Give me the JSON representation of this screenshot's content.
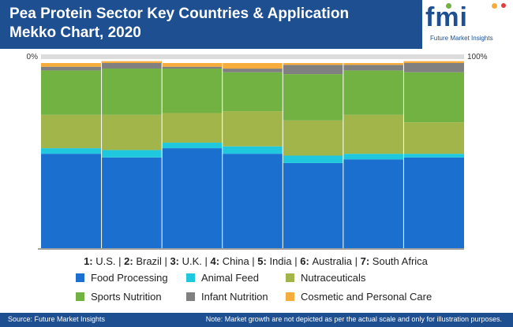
{
  "header": {
    "title_line1": "Pea Protein Sector Key Countries & Application",
    "title_line2": "Mekko Chart, 2020",
    "logo_text": "fmi",
    "logo_subtitle": "Future Market Insights"
  },
  "footer": {
    "source": "Source: Future Market Insights",
    "note": "Note: Market growth are not depicted as per the actual scale and only for illustration purposes."
  },
  "chart_data": {
    "type": "bar",
    "subtype": "mekko-stacked-100",
    "axis_labels": {
      "start": "0%",
      "end": "100%"
    },
    "categories": [
      "1: U.S.",
      "2: Brazil",
      "3: U.K.",
      "4: China",
      "5: India",
      "6: Australia",
      "7: South Africa"
    ],
    "category_numbers": [
      "1:",
      "2:",
      "3:",
      "4:",
      "5:",
      "6:",
      "7:"
    ],
    "category_names": [
      "U.S.",
      "Brazil",
      "U.K.",
      "China",
      "India",
      "Australia",
      "South Africa"
    ],
    "series": [
      {
        "name": "Food Processing",
        "color": "#1a6fcf",
        "values": [
          51,
          49,
          54,
          51,
          46,
          48,
          49
        ]
      },
      {
        "name": "Animal Feed",
        "color": "#1fc8dc",
        "values": [
          3,
          4,
          3,
          4,
          4,
          3,
          2
        ]
      },
      {
        "name": "Nutraceuticals",
        "color": "#a2b54b",
        "values": [
          18,
          19,
          16,
          19,
          19,
          21,
          17
        ]
      },
      {
        "name": "Sports Nutrition",
        "color": "#72b242",
        "values": [
          24,
          25,
          24,
          21,
          25,
          24,
          27
        ]
      },
      {
        "name": "Infant Nutrition",
        "color": "#808080",
        "values": [
          2,
          3,
          1,
          2,
          5,
          3,
          5
        ]
      },
      {
        "name": "Cosmetic and Personal Care",
        "color": "#f7ad3c",
        "values": [
          2,
          1,
          2,
          3,
          1,
          1,
          1
        ]
      }
    ],
    "legend": {
      "placement": "bottom",
      "columns": 3
    },
    "ylim": [
      0,
      100
    ],
    "grid": false
  }
}
